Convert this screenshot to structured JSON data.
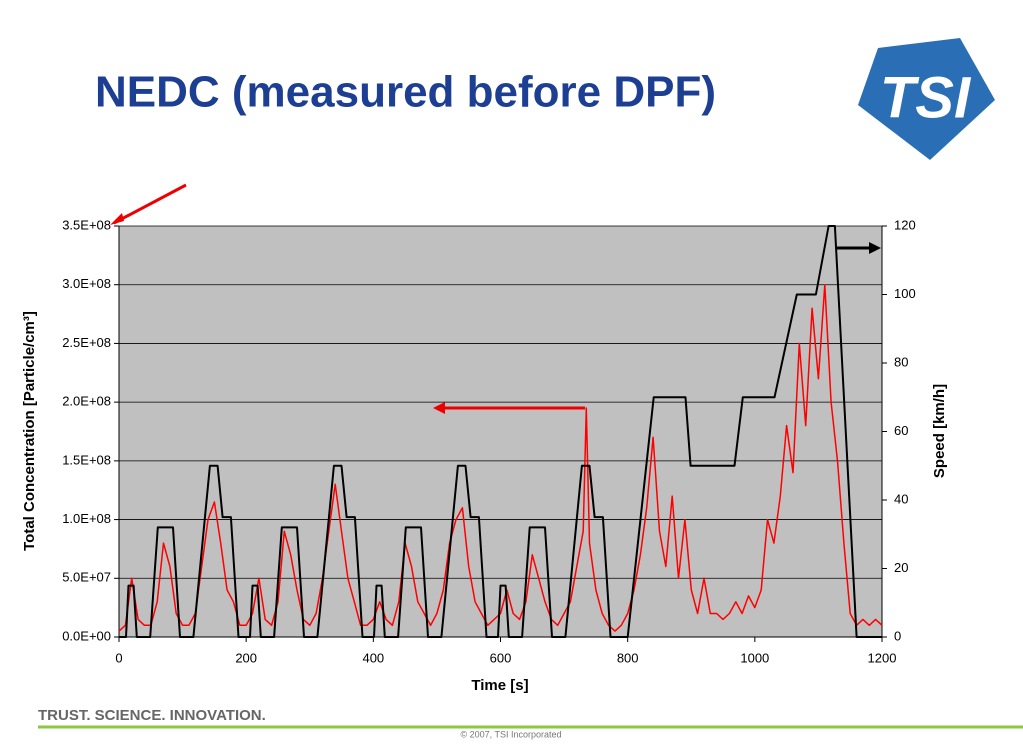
{
  "chart_data": {
    "type": "line",
    "title": "NEDC (measured before DPF)",
    "logo": "TSI",
    "tagline": "TRUST. SCIENCE. INNOVATION.",
    "footer": "© 2007, TSI Incorporated",
    "x_label": "Time [s]",
    "y_label": "Total Concentration [Particle/cm³]",
    "y2_label": "Speed [km/h]",
    "xlim": [
      0,
      1200
    ],
    "xticks": [
      0,
      200,
      400,
      600,
      800,
      1000,
      1200
    ],
    "ylim": [
      0,
      350000000
    ],
    "yticks": [
      {
        "value": 0,
        "label": "0.0E+00"
      },
      {
        "value": 50000000,
        "label": "5.0E+07"
      },
      {
        "value": 100000000,
        "label": "1.0E+08"
      },
      {
        "value": 150000000,
        "label": "1.5E+08"
      },
      {
        "value": 200000000,
        "label": "2.0E+08"
      },
      {
        "value": 250000000,
        "label": "2.5E+08"
      },
      {
        "value": 300000000,
        "label": "3.0E+08"
      },
      {
        "value": 350000000,
        "label": "3.5E+08"
      }
    ],
    "y2lim": [
      0,
      120
    ],
    "y2ticks": [
      0,
      20,
      40,
      60,
      80,
      100,
      120
    ],
    "grid": true,
    "series": [
      {
        "color": "#ff0000",
        "x": [
          0,
          10,
          20,
          30,
          40,
          50,
          60,
          70,
          80,
          90,
          100,
          110,
          120,
          130,
          140,
          150,
          160,
          170,
          180,
          190,
          200,
          210,
          220,
          230,
          240,
          250,
          260,
          270,
          280,
          290,
          300,
          310,
          320,
          330,
          340,
          350,
          360,
          370,
          380,
          390,
          400,
          410,
          420,
          430,
          440,
          450,
          460,
          470,
          480,
          490,
          500,
          510,
          520,
          530,
          540,
          550,
          560,
          570,
          580,
          590,
          600,
          610,
          620,
          630,
          640,
          650,
          660,
          670,
          680,
          690,
          700,
          710,
          720,
          730,
          735,
          740,
          750,
          760,
          770,
          780,
          790,
          800,
          810,
          820,
          830,
          840,
          850,
          860,
          870,
          880,
          890,
          900,
          910,
          920,
          930,
          940,
          950,
          960,
          970,
          980,
          990,
          1000,
          1010,
          1020,
          1030,
          1040,
          1050,
          1060,
          1070,
          1080,
          1090,
          1100,
          1110,
          1120,
          1130,
          1140,
          1150,
          1160,
          1170,
          1180,
          1190,
          1200
        ],
        "values": [
          5000000.0,
          10000000.0,
          50000000.0,
          15000000.0,
          10000000.0,
          10000000.0,
          30000000.0,
          80000000.0,
          60000000.0,
          20000000.0,
          10000000.0,
          10000000.0,
          20000000.0,
          60000000.0,
          100000000.0,
          115000000.0,
          80000000.0,
          40000000.0,
          30000000.0,
          10000000.0,
          10000000.0,
          20000000.0,
          50000000.0,
          15000000.0,
          10000000.0,
          30000000.0,
          90000000.0,
          70000000.0,
          40000000.0,
          15000000.0,
          10000000.0,
          20000000.0,
          50000000.0,
          90000000.0,
          130000000.0,
          90000000.0,
          50000000.0,
          30000000.0,
          10000000.0,
          10000000.0,
          15000000.0,
          30000000.0,
          15000000.0,
          10000000.0,
          30000000.0,
          80000000.0,
          60000000.0,
          30000000.0,
          20000000.0,
          10000000.0,
          20000000.0,
          40000000.0,
          80000000.0,
          100000000.0,
          110000000.0,
          60000000.0,
          30000000.0,
          20000000.0,
          10000000.0,
          15000000.0,
          20000000.0,
          40000000.0,
          20000000.0,
          15000000.0,
          30000000.0,
          70000000.0,
          50000000.0,
          30000000.0,
          15000000.0,
          10000000.0,
          20000000.0,
          30000000.0,
          60000000.0,
          90000000.0,
          195000000.0,
          80000000.0,
          40000000.0,
          20000000.0,
          10000000.0,
          5000000.0,
          10000000.0,
          20000000.0,
          40000000.0,
          70000000.0,
          110000000.0,
          170000000.0,
          90000000.0,
          60000000.0,
          120000000.0,
          50000000.0,
          100000000.0,
          40000000.0,
          20000000.0,
          50000000.0,
          20000000.0,
          20000000.0,
          15000000.0,
          20000000.0,
          30000000.0,
          20000000.0,
          35000000.0,
          25000000.0,
          40000000.0,
          100000000.0,
          80000000.0,
          120000000.0,
          180000000.0,
          140000000.0,
          250000000.0,
          180000000.0,
          280000000.0,
          220000000.0,
          300000000.0,
          200000000.0,
          150000000.0,
          80000000.0,
          20000000.0,
          10000000.0,
          15000000.0,
          10000000.0,
          15000000.0,
          10000000.0
        ]
      },
      {
        "color": "#000000",
        "axis": "y2",
        "x": [
          0,
          11,
          15,
          23,
          28,
          49,
          61,
          85,
          96,
          117,
          143,
          155,
          163,
          176,
          188,
          195,
          206,
          210,
          218,
          223,
          244,
          256,
          280,
          291,
          312,
          338,
          350,
          358,
          371,
          383,
          390,
          401,
          405,
          413,
          418,
          439,
          451,
          475,
          486,
          507,
          533,
          545,
          553,
          566,
          578,
          585,
          596,
          600,
          608,
          613,
          634,
          646,
          670,
          681,
          702,
          728,
          740,
          748,
          761,
          773,
          780,
          800,
          841,
          891,
          899,
          968,
          981,
          1031,
          1066,
          1096,
          1116,
          1126,
          1160,
          1180,
          1200
        ],
        "values": [
          0,
          0,
          15,
          15,
          0,
          0,
          32,
          32,
          0,
          0,
          50,
          50,
          35,
          35,
          0,
          0,
          0,
          15,
          15,
          0,
          0,
          32,
          32,
          0,
          0,
          50,
          50,
          35,
          35,
          0,
          0,
          0,
          15,
          15,
          0,
          0,
          32,
          32,
          0,
          0,
          50,
          50,
          35,
          35,
          0,
          0,
          0,
          15,
          15,
          0,
          0,
          32,
          32,
          0,
          0,
          50,
          50,
          35,
          35,
          0,
          0,
          0,
          70,
          70,
          50,
          50,
          70,
          70,
          100,
          100,
          120,
          120,
          0,
          0,
          0
        ]
      }
    ]
  }
}
